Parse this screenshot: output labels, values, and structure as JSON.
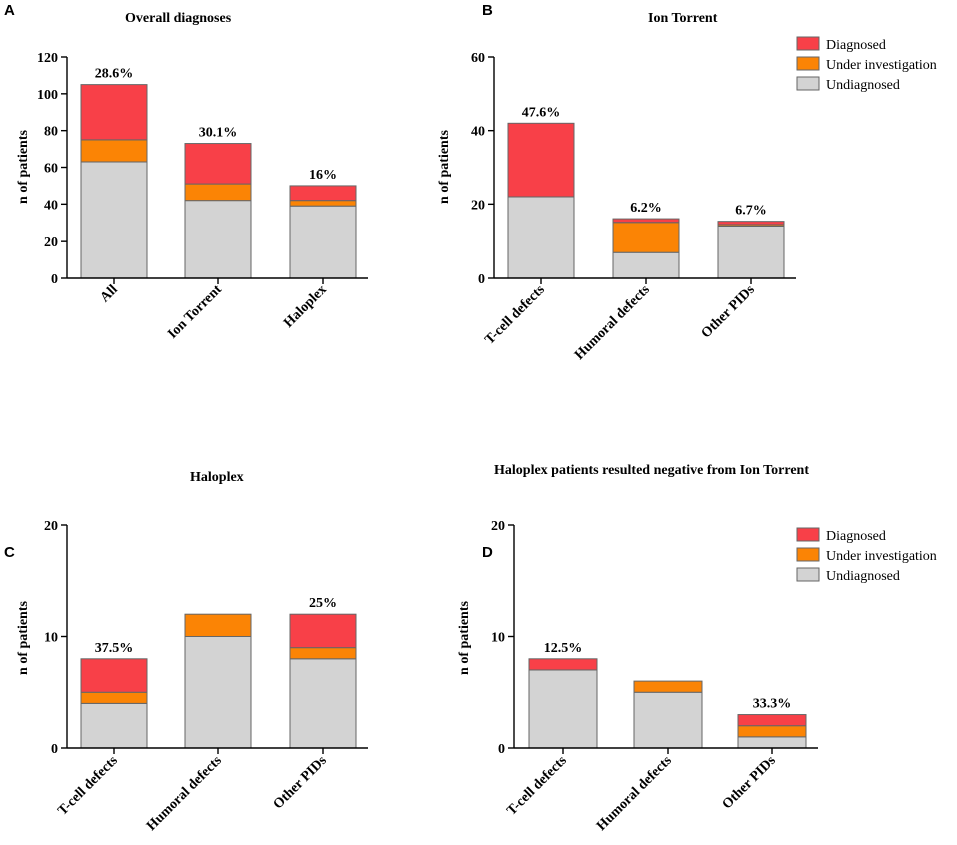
{
  "colors": {
    "diagnosed": "#f84048",
    "under_investigation": "#fb8405",
    "undiagnosed": "#d3d3d3"
  },
  "legend_labels": [
    "Diagnosed",
    "Under investigation",
    "Undiagnosed"
  ],
  "chart_data": [
    {
      "panel": "A",
      "type": "bar",
      "stacked": true,
      "title": "Overall diagnoses",
      "ylabel": "n of patients",
      "ylim": [
        0,
        120
      ],
      "yticks": [
        0,
        20,
        40,
        60,
        80,
        100,
        120
      ],
      "categories": [
        "All",
        "Ion Torrent",
        "Haloplex"
      ],
      "series": [
        {
          "name": "Undiagnosed",
          "values": [
            63,
            42,
            39
          ]
        },
        {
          "name": "Under investigation",
          "values": [
            12,
            9,
            3
          ]
        },
        {
          "name": "Diagnosed",
          "values": [
            30,
            22,
            8
          ]
        }
      ],
      "annotations": [
        "28.6%",
        "30.1%",
        "16%"
      ],
      "legend": false
    },
    {
      "panel": "B",
      "type": "bar",
      "stacked": true,
      "title": "Ion Torrent",
      "ylabel": "n of patients",
      "ylim": [
        0,
        60
      ],
      "yticks": [
        0,
        20,
        40,
        60
      ],
      "categories": [
        "T-cell defects",
        "Humoral defects",
        "Other PIDs"
      ],
      "series": [
        {
          "name": "Undiagnosed",
          "values": [
            22,
            7,
            14
          ]
        },
        {
          "name": "Under investigation",
          "values": [
            0,
            8,
            0.4
          ]
        },
        {
          "name": "Diagnosed",
          "values": [
            20,
            1,
            0.9
          ]
        }
      ],
      "annotations": [
        "47.6%",
        "6.2%",
        "6.7%"
      ],
      "legend": true
    },
    {
      "panel": "C",
      "type": "bar",
      "stacked": true,
      "title": "Haloplex",
      "ylabel": "n of patients",
      "ylim": [
        0,
        20
      ],
      "yticks": [
        0,
        10,
        20
      ],
      "categories": [
        "T-cell defects",
        "Humoral defects",
        "Other PIDs"
      ],
      "series": [
        {
          "name": "Undiagnosed",
          "values": [
            4,
            10,
            8
          ]
        },
        {
          "name": "Under investigation",
          "values": [
            1,
            2,
            1
          ]
        },
        {
          "name": "Diagnosed",
          "values": [
            3,
            0,
            3
          ]
        }
      ],
      "annotations": [
        "37.5%",
        "",
        "25%"
      ],
      "legend": false
    },
    {
      "panel": "D",
      "type": "bar",
      "stacked": true,
      "title": "Haloplex patients resulted negative from Ion Torrent",
      "ylabel": "n of patients",
      "ylim": [
        0,
        20
      ],
      "yticks": [
        0,
        10,
        20
      ],
      "categories": [
        "T-cell defects",
        "Humoral defects",
        "Other PIDs"
      ],
      "series": [
        {
          "name": "Undiagnosed",
          "values": [
            7,
            5,
            1
          ]
        },
        {
          "name": "Under investigation",
          "values": [
            0,
            1,
            1
          ]
        },
        {
          "name": "Diagnosed",
          "values": [
            1,
            0,
            1
          ]
        }
      ],
      "annotations": [
        "12.5%",
        "",
        "33.3%"
      ],
      "legend": true
    }
  ]
}
